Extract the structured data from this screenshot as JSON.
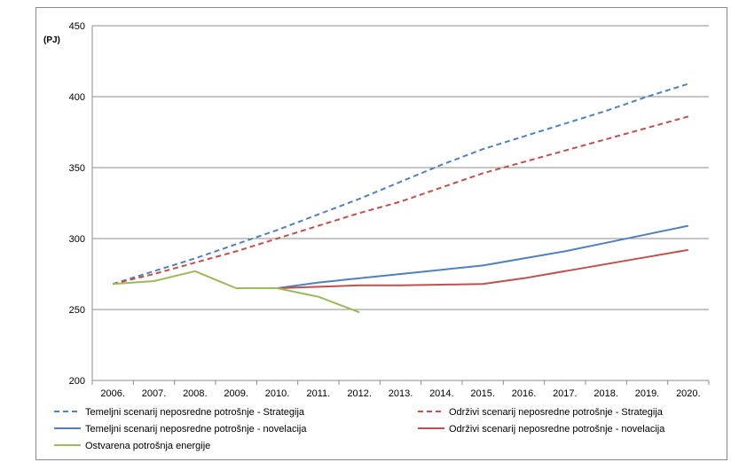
{
  "chart_data": {
    "type": "line",
    "title": "",
    "xlabel": "",
    "ylabel": "(PJ)",
    "ylim": [
      200,
      450
    ],
    "yticks": [
      200,
      250,
      300,
      350,
      400,
      450
    ],
    "grid": "horizontal",
    "legend_position": "bottom",
    "categories": [
      "2006.",
      "2007.",
      "2008.",
      "2009.",
      "2010.",
      "2011.",
      "2012.",
      "2013.",
      "2014.",
      "2015.",
      "2016.",
      "2017.",
      "2018.",
      "2019.",
      "2020."
    ],
    "series": [
      {
        "name": "Temeljni scenarij neposredne potrošnje - Strategija",
        "color": "#4f81bd",
        "style": "dashed",
        "values": [
          268,
          277,
          286,
          296,
          306,
          317,
          328,
          340,
          352,
          363,
          372,
          381,
          390,
          400,
          409
        ]
      },
      {
        "name": "Održivi scenarij neposredne potrošnje - Strategija",
        "color": "#c0504d",
        "style": "dashed",
        "values": [
          268,
          275,
          283,
          291,
          300,
          309,
          318,
          326,
          336,
          346,
          354,
          362,
          370,
          378,
          386
        ]
      },
      {
        "name": "Temeljni scenarij neposredne potrošnje - novelacija",
        "color": "#4f81bd",
        "style": "solid",
        "values": [
          null,
          null,
          null,
          null,
          265,
          269,
          272,
          275,
          278,
          281,
          286,
          291,
          297,
          303,
          309
        ]
      },
      {
        "name": "Održivi scenarij neposredne potrošnje - novelacija",
        "color": "#c0504d",
        "style": "solid",
        "values": [
          null,
          null,
          null,
          null,
          265,
          266,
          267,
          267,
          267.5,
          268,
          272,
          277,
          282,
          287,
          292
        ]
      },
      {
        "name": "Ostvarena potrošnja energije",
        "color": "#9bbb59",
        "style": "solid",
        "values": [
          268,
          270,
          277,
          265,
          265,
          259,
          248,
          null,
          null,
          null,
          null,
          null,
          null,
          null,
          null
        ]
      }
    ]
  }
}
